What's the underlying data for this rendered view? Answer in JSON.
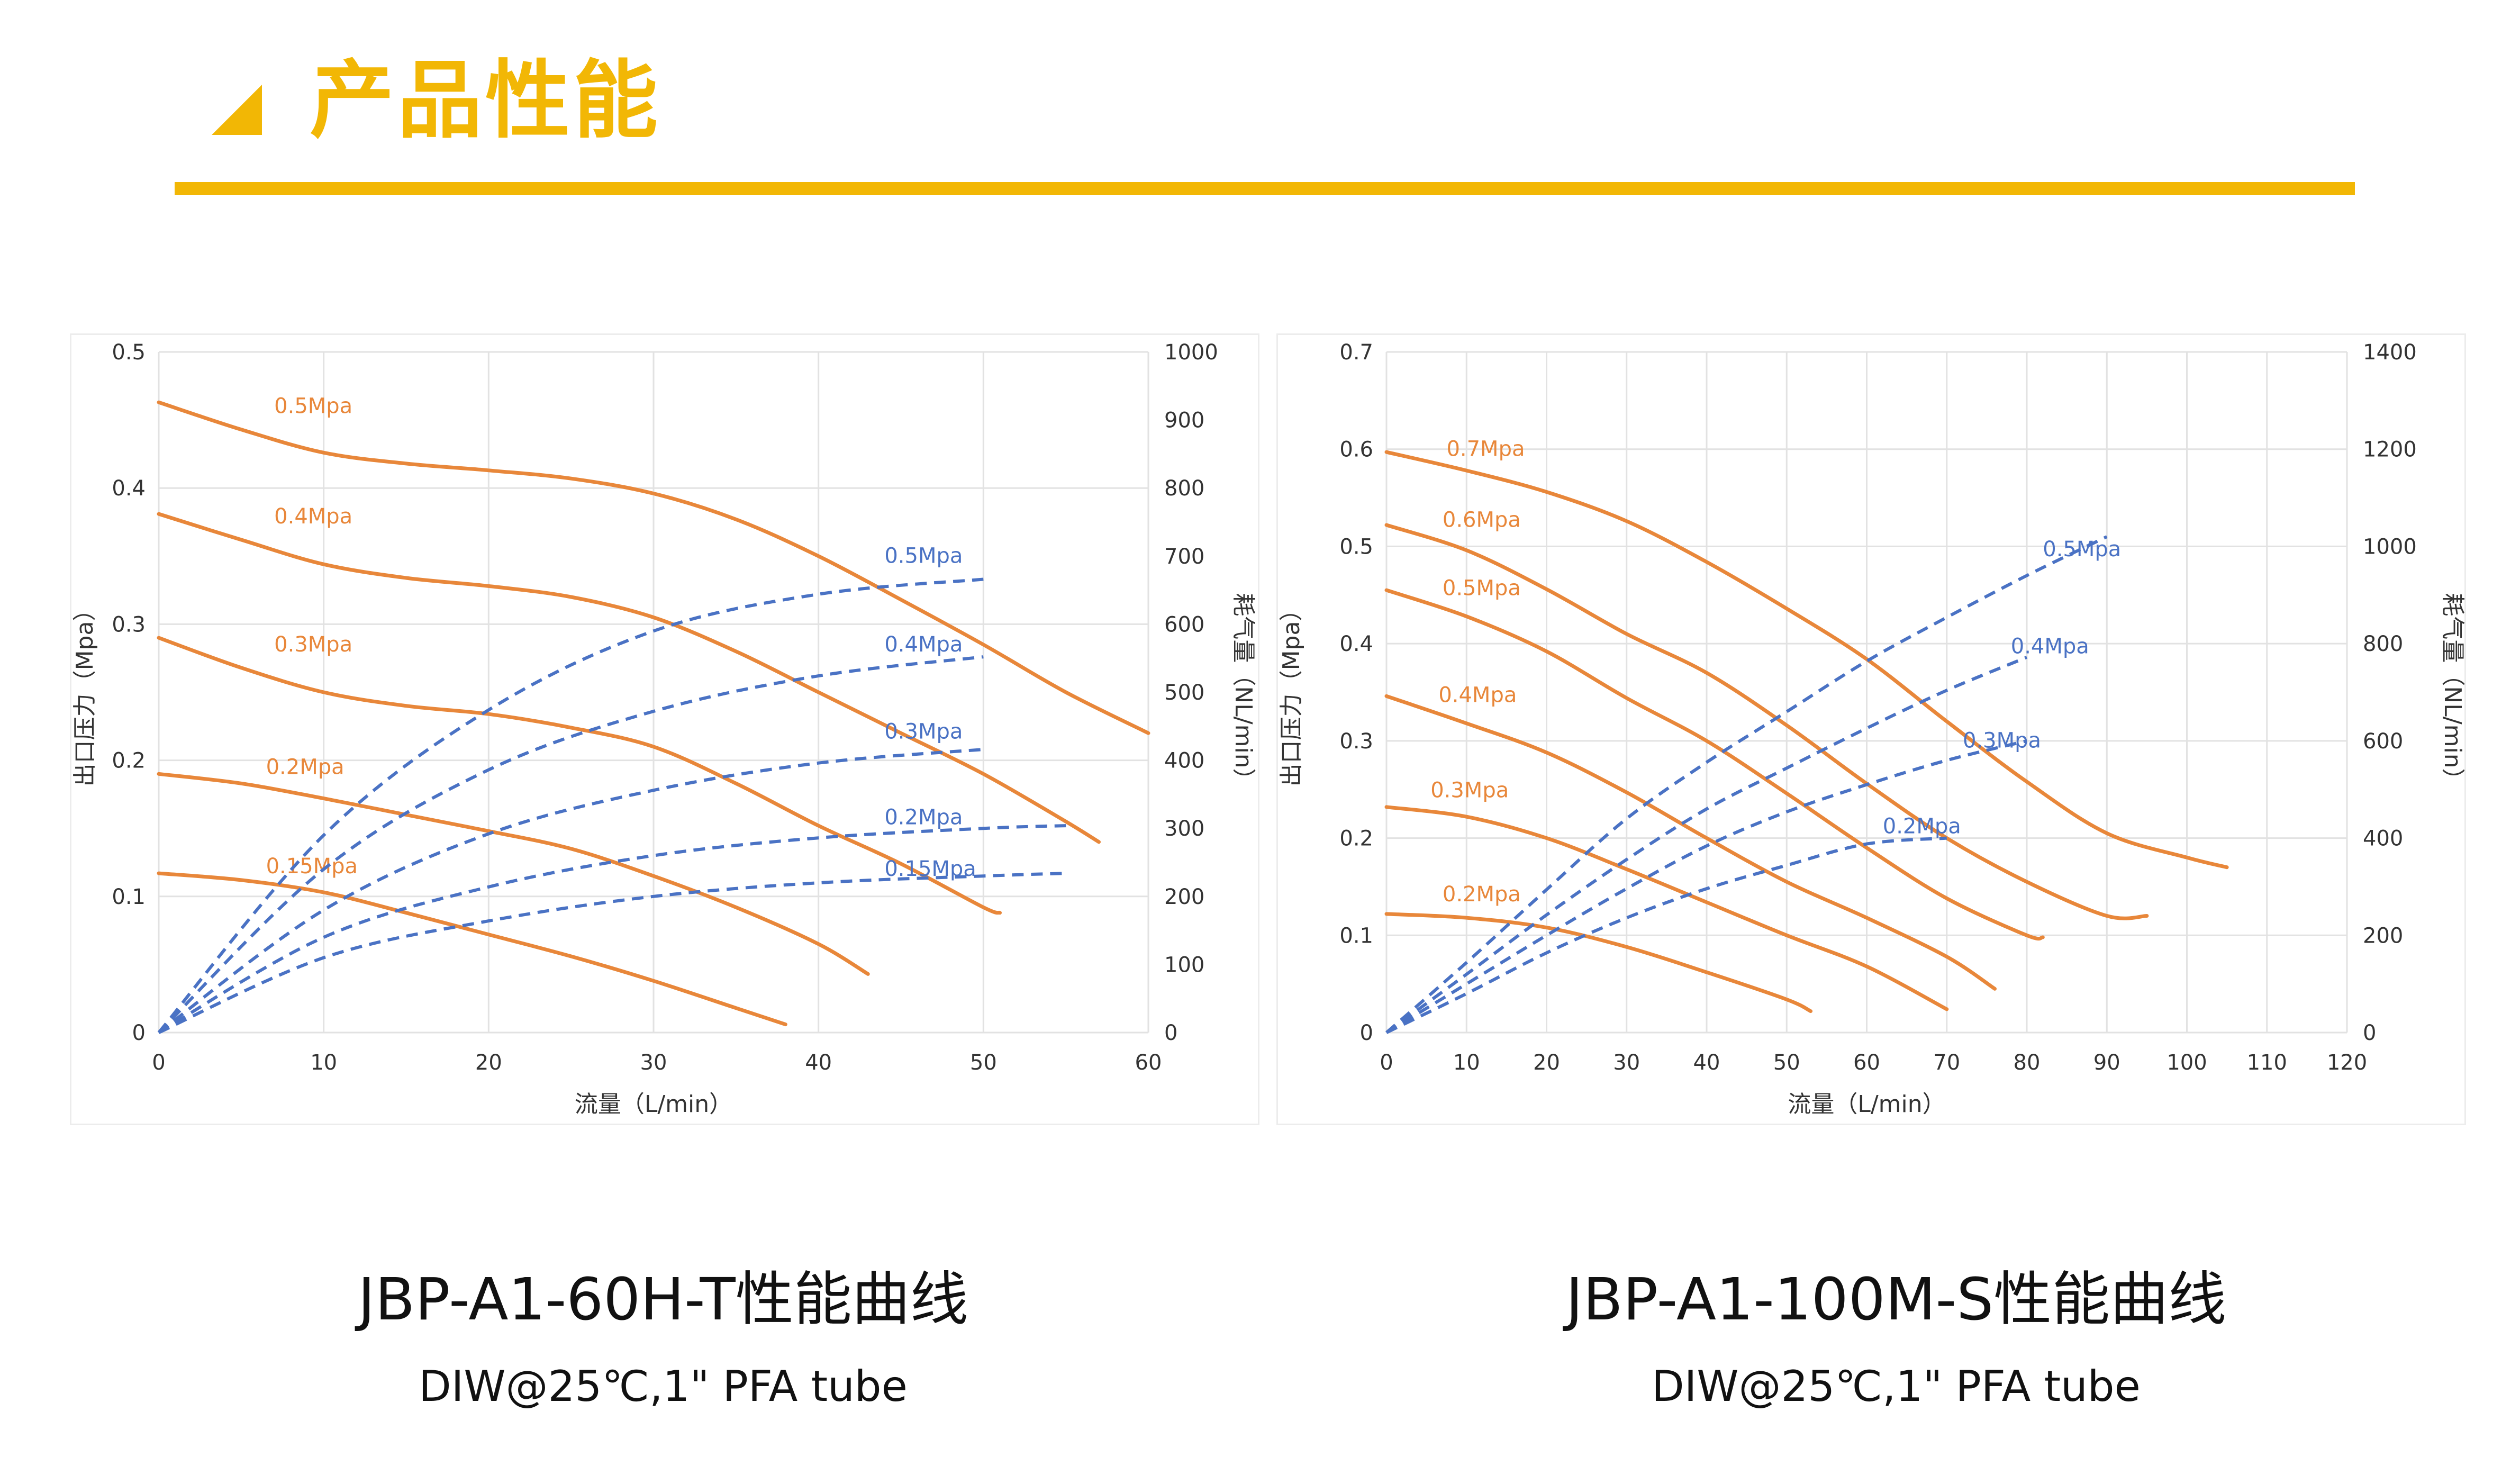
{
  "header": {
    "title": "产品性能",
    "accent_color": "#f2b705"
  },
  "colors": {
    "pressure_curve": "#e8873a",
    "pressure_label": "#e8873a",
    "air_curve": "#4a72c4",
    "air_label": "#4a72c4",
    "grid": "#e2e2e2",
    "axis_text": "#333333"
  },
  "captions": {
    "left": {
      "title": "JBP-A1-60H-T性能曲线",
      "subtitle": "DIW@25℃,1\" PFA tube"
    },
    "right": {
      "title": "JBP-A1-100M-S性能曲线",
      "subtitle": "DIW@25℃,1\" PFA tube"
    }
  },
  "chart_data": [
    {
      "type": "line",
      "title": "JBP-A1-60H-T性能曲线",
      "xlabel": "流量（L/min）",
      "ylabel": "出口压力（Mpa）",
      "y2label": "耗气量（NL/min）",
      "xlim": [
        0,
        60
      ],
      "ylim": [
        0,
        0.5
      ],
      "y2lim": [
        0,
        1000
      ],
      "xticks": [
        "0",
        "10",
        "20",
        "30",
        "40",
        "50",
        "60"
      ],
      "yticks": [
        "0",
        "0.1",
        "0.2",
        "0.3",
        "0.4",
        "0.5"
      ],
      "y2ticks": [
        "0",
        "100",
        "200",
        "300",
        "400",
        "500",
        "600",
        "700",
        "800",
        "900",
        "1000"
      ],
      "grid": true,
      "pressure_series": [
        {
          "name": "0.5Mpa",
          "label_at": [
            7,
            0.455
          ],
          "points": [
            [
              0,
              0.463
            ],
            [
              5,
              0.443
            ],
            [
              10,
              0.426
            ],
            [
              15,
              0.418
            ],
            [
              20,
              0.413
            ],
            [
              25,
              0.407
            ],
            [
              30,
              0.396
            ],
            [
              35,
              0.377
            ],
            [
              40,
              0.35
            ],
            [
              45,
              0.318
            ],
            [
              50,
              0.285
            ],
            [
              55,
              0.25
            ],
            [
              60,
              0.22
            ]
          ]
        },
        {
          "name": "0.4Mpa",
          "label_at": [
            7,
            0.374
          ],
          "points": [
            [
              0,
              0.381
            ],
            [
              5,
              0.362
            ],
            [
              10,
              0.344
            ],
            [
              15,
              0.334
            ],
            [
              20,
              0.328
            ],
            [
              25,
              0.32
            ],
            [
              30,
              0.305
            ],
            [
              35,
              0.28
            ],
            [
              40,
              0.25
            ],
            [
              45,
              0.22
            ],
            [
              50,
              0.19
            ],
            [
              55,
              0.155
            ],
            [
              57,
              0.14
            ]
          ]
        },
        {
          "name": "0.3Mpa",
          "label_at": [
            7,
            0.28
          ],
          "points": [
            [
              0,
              0.29
            ],
            [
              5,
              0.268
            ],
            [
              10,
              0.25
            ],
            [
              15,
              0.24
            ],
            [
              20,
              0.234
            ],
            [
              25,
              0.224
            ],
            [
              30,
              0.21
            ],
            [
              35,
              0.183
            ],
            [
              40,
              0.152
            ],
            [
              45,
              0.124
            ],
            [
              50,
              0.092
            ],
            [
              51,
              0.088
            ]
          ]
        },
        {
          "name": "0.2Mpa",
          "label_at": [
            6.5,
            0.19
          ],
          "points": [
            [
              0,
              0.19
            ],
            [
              5,
              0.183
            ],
            [
              10,
              0.172
            ],
            [
              15,
              0.16
            ],
            [
              20,
              0.148
            ],
            [
              25,
              0.135
            ],
            [
              30,
              0.115
            ],
            [
              35,
              0.092
            ],
            [
              40,
              0.065
            ],
            [
              43,
              0.043
            ]
          ]
        },
        {
          "name": "0.15Mpa",
          "label_at": [
            6.5,
            0.117
          ],
          "points": [
            [
              0,
              0.117
            ],
            [
              5,
              0.112
            ],
            [
              10,
              0.103
            ],
            [
              15,
              0.088
            ],
            [
              20,
              0.072
            ],
            [
              25,
              0.056
            ],
            [
              30,
              0.038
            ],
            [
              35,
              0.018
            ],
            [
              38,
              0.006
            ]
          ]
        }
      ],
      "air_series": [
        {
          "name": "0.5Mpa",
          "label_at": [
            44,
            0.345
          ],
          "points": [
            [
              0,
              0
            ],
            [
              10,
              0.145
            ],
            [
              20,
              0.237
            ],
            [
              30,
              0.295
            ],
            [
              40,
              0.322
            ],
            [
              50,
              0.333
            ]
          ]
        },
        {
          "name": "0.4Mpa",
          "label_at": [
            44,
            0.28
          ],
          "points": [
            [
              0,
              0
            ],
            [
              10,
              0.12
            ],
            [
              20,
              0.193
            ],
            [
              30,
              0.236
            ],
            [
              40,
              0.262
            ],
            [
              50,
              0.276
            ]
          ]
        },
        {
          "name": "0.3Mpa",
          "label_at": [
            44,
            0.216
          ],
          "points": [
            [
              0,
              0
            ],
            [
              10,
              0.09
            ],
            [
              20,
              0.146
            ],
            [
              30,
              0.178
            ],
            [
              40,
              0.198
            ],
            [
              50,
              0.208
            ]
          ]
        },
        {
          "name": "0.2Mpa",
          "label_at": [
            44,
            0.153
          ],
          "points": [
            [
              0,
              0
            ],
            [
              10,
              0.07
            ],
            [
              20,
              0.107
            ],
            [
              30,
              0.13
            ],
            [
              40,
              0.143
            ],
            [
              50,
              0.15
            ],
            [
              55,
              0.152
            ]
          ]
        },
        {
          "name": "0.15Mpa",
          "label_at": [
            44,
            0.115
          ],
          "points": [
            [
              0,
              0
            ],
            [
              10,
              0.055
            ],
            [
              20,
              0.082
            ],
            [
              30,
              0.1
            ],
            [
              40,
              0.11
            ],
            [
              50,
              0.115
            ],
            [
              55,
              0.117
            ]
          ]
        }
      ]
    },
    {
      "type": "line",
      "title": "JBP-A1-100M-S性能曲线",
      "xlabel": "流量（L/min）",
      "ylabel": "出口压力（Mpa）",
      "y2label": "耗气量（NL/min）",
      "xlim": [
        0,
        120
      ],
      "ylim": [
        0,
        0.7
      ],
      "y2lim": [
        0,
        1400
      ],
      "xticks": [
        "0",
        "10",
        "20",
        "30",
        "40",
        "50",
        "60",
        "70",
        "80",
        "90",
        "100",
        "110",
        "120"
      ],
      "yticks": [
        "0",
        "0.1",
        "0.2",
        "0.3",
        "0.4",
        "0.5",
        "0.6",
        "0.7"
      ],
      "y2ticks": [
        "0",
        "200",
        "400",
        "600",
        "800",
        "1000",
        "1200",
        "1400"
      ],
      "grid": true,
      "pressure_series": [
        {
          "name": "0.7Mpa",
          "label_at": [
            7.5,
            0.593
          ],
          "points": [
            [
              0,
              0.597
            ],
            [
              10,
              0.578
            ],
            [
              20,
              0.556
            ],
            [
              30,
              0.526
            ],
            [
              40,
              0.484
            ],
            [
              50,
              0.436
            ],
            [
              60,
              0.384
            ],
            [
              70,
              0.32
            ],
            [
              80,
              0.258
            ],
            [
              90,
              0.205
            ],
            [
              100,
              0.18
            ],
            [
              105,
              0.17
            ]
          ]
        },
        {
          "name": "0.6Mpa",
          "label_at": [
            7,
            0.52
          ],
          "points": [
            [
              0,
              0.522
            ],
            [
              10,
              0.496
            ],
            [
              20,
              0.456
            ],
            [
              30,
              0.41
            ],
            [
              40,
              0.37
            ],
            [
              50,
              0.316
            ],
            [
              60,
              0.256
            ],
            [
              70,
              0.2
            ],
            [
              80,
              0.155
            ],
            [
              90,
              0.12
            ],
            [
              95,
              0.12
            ]
          ]
        },
        {
          "name": "0.5Mpa",
          "label_at": [
            7,
            0.45
          ],
          "points": [
            [
              0,
              0.455
            ],
            [
              10,
              0.428
            ],
            [
              20,
              0.392
            ],
            [
              30,
              0.344
            ],
            [
              40,
              0.3
            ],
            [
              50,
              0.246
            ],
            [
              60,
              0.19
            ],
            [
              70,
              0.138
            ],
            [
              80,
              0.1
            ],
            [
              82,
              0.098
            ]
          ]
        },
        {
          "name": "0.4Mpa",
          "label_at": [
            6.5,
            0.34
          ],
          "points": [
            [
              0,
              0.346
            ],
            [
              10,
              0.318
            ],
            [
              20,
              0.288
            ],
            [
              30,
              0.247
            ],
            [
              40,
              0.2
            ],
            [
              50,
              0.155
            ],
            [
              60,
              0.118
            ],
            [
              70,
              0.078
            ],
            [
              76,
              0.045
            ]
          ]
        },
        {
          "name": "0.3Mpa",
          "label_at": [
            5.5,
            0.242
          ],
          "points": [
            [
              0,
              0.232
            ],
            [
              10,
              0.222
            ],
            [
              20,
              0.2
            ],
            [
              30,
              0.168
            ],
            [
              40,
              0.134
            ],
            [
              50,
              0.1
            ],
            [
              60,
              0.068
            ],
            [
              70,
              0.024
            ]
          ]
        },
        {
          "name": "0.2Mpa",
          "label_at": [
            7,
            0.135
          ],
          "points": [
            [
              0,
              0.122
            ],
            [
              10,
              0.118
            ],
            [
              20,
              0.108
            ],
            [
              30,
              0.088
            ],
            [
              40,
              0.062
            ],
            [
              50,
              0.034
            ],
            [
              53,
              0.022
            ]
          ]
        }
      ],
      "air_series": [
        {
          "name": "0.5Mpa",
          "label_at": [
            82,
            0.49
          ],
          "points": [
            [
              0,
              0
            ],
            [
              10,
              0.072
            ],
            [
              20,
              0.147
            ],
            [
              30,
              0.22
            ],
            [
              40,
              0.278
            ],
            [
              50,
              0.33
            ],
            [
              60,
              0.382
            ],
            [
              70,
              0.427
            ],
            [
              80,
              0.47
            ],
            [
              90,
              0.51
            ]
          ]
        },
        {
          "name": "0.4Mpa",
          "label_at": [
            78,
            0.39
          ],
          "points": [
            [
              0,
              0
            ],
            [
              10,
              0.06
            ],
            [
              20,
              0.121
            ],
            [
              30,
              0.178
            ],
            [
              40,
              0.23
            ],
            [
              50,
              0.272
            ],
            [
              60,
              0.313
            ],
            [
              70,
              0.352
            ],
            [
              80,
              0.386
            ]
          ]
        },
        {
          "name": "0.3Mpa",
          "label_at": [
            72,
            0.293
          ],
          "points": [
            [
              0,
              0
            ],
            [
              10,
              0.05
            ],
            [
              20,
              0.1
            ],
            [
              30,
              0.148
            ],
            [
              40,
              0.192
            ],
            [
              50,
              0.227
            ],
            [
              60,
              0.255
            ],
            [
              70,
              0.28
            ],
            [
              80,
              0.3
            ]
          ]
        },
        {
          "name": "0.2Mpa",
          "label_at": [
            62,
            0.205
          ],
          "points": [
            [
              0,
              0
            ],
            [
              10,
              0.04
            ],
            [
              20,
              0.082
            ],
            [
              30,
              0.118
            ],
            [
              40,
              0.148
            ],
            [
              50,
              0.172
            ],
            [
              60,
              0.194
            ],
            [
              70,
              0.2
            ]
          ]
        }
      ]
    }
  ]
}
